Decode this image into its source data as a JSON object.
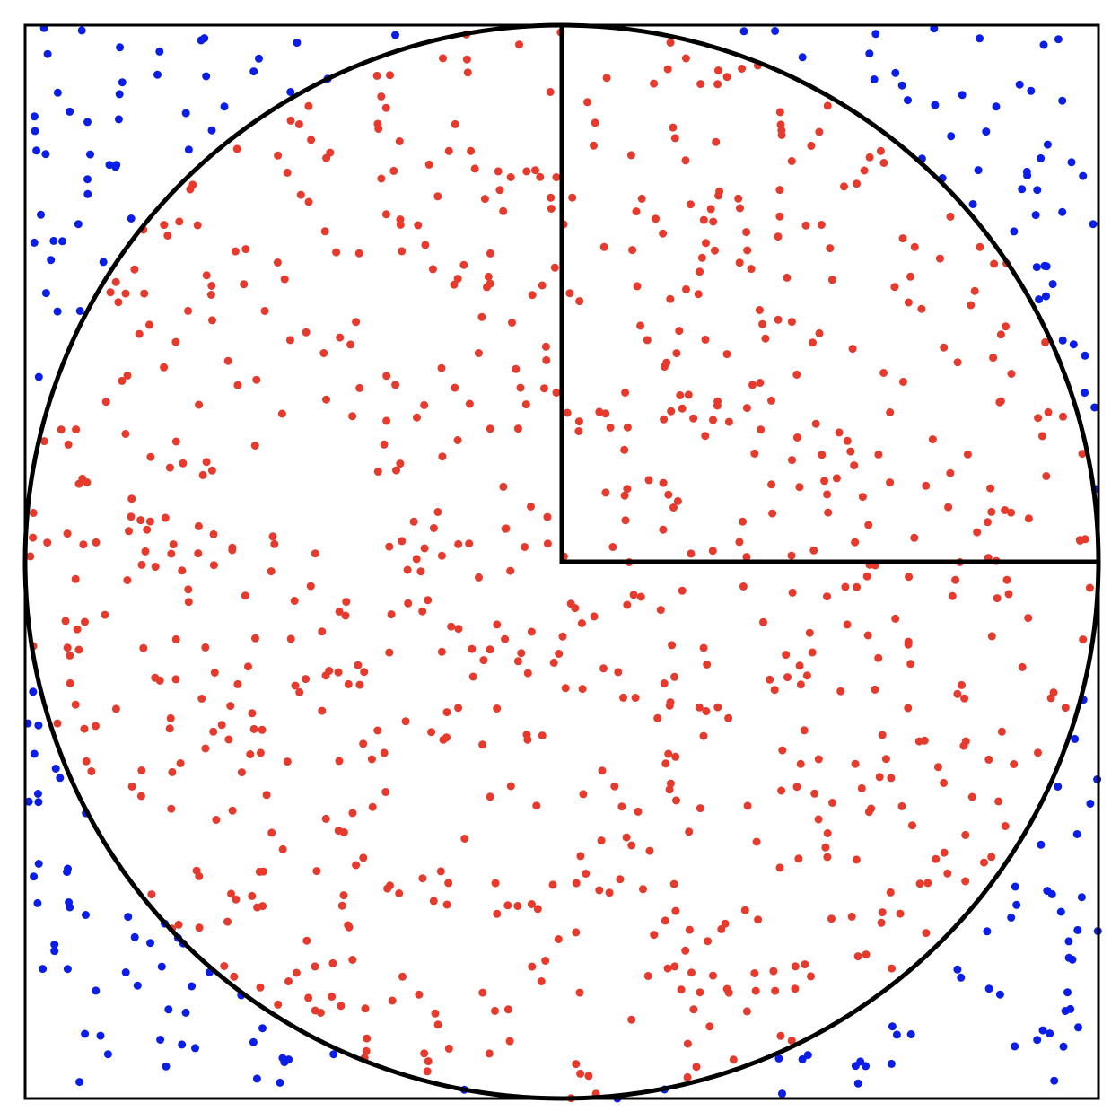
{
  "diagram": {
    "description_kind": "monte-carlo-pi",
    "colors": {
      "background": "#ffffff",
      "outline": "#000000",
      "inside_point": "#e53a2c",
      "outside_point": "#0a1ee8"
    },
    "domain": {
      "xmin": -1,
      "xmax": 1,
      "ymin": -1,
      "ymax": 1
    },
    "circle": {
      "cx": 0,
      "cy": 0,
      "r": 1
    },
    "quadrant": {
      "x0": 0,
      "y0": 0,
      "x1": 1,
      "y1": 1
    },
    "points_approx_count": 1000,
    "rng_seed": 20240521
  }
}
